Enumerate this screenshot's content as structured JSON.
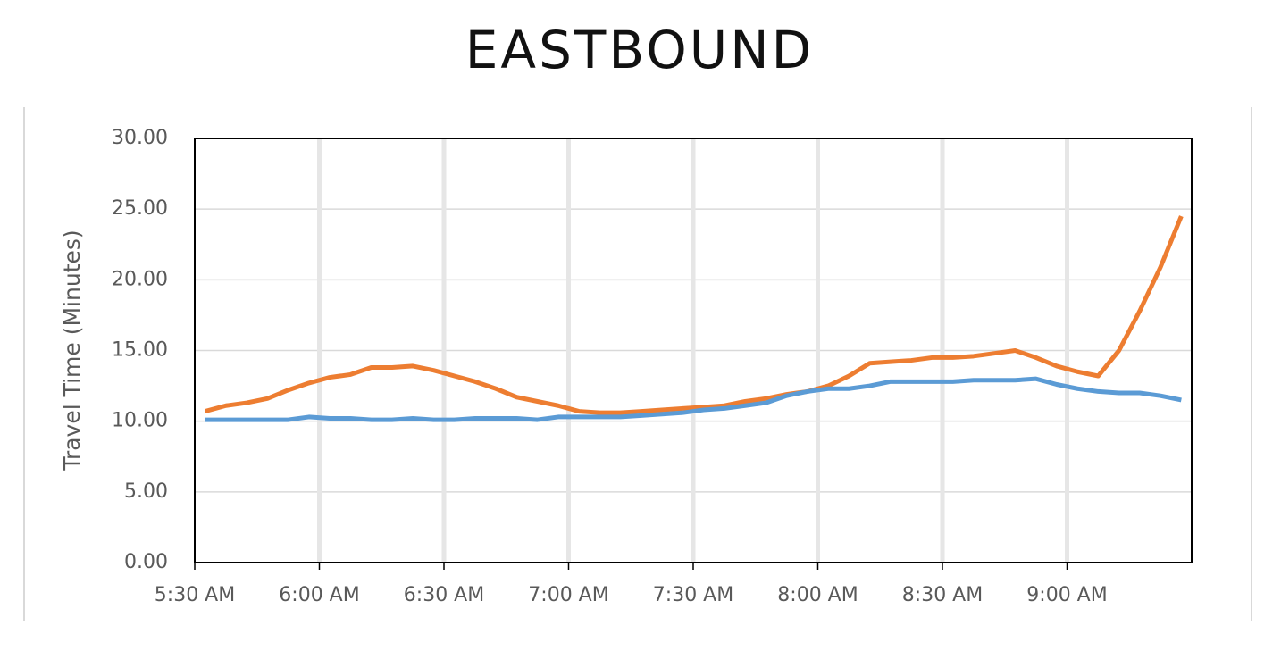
{
  "chart_data": {
    "type": "line",
    "title": "EASTBOUND",
    "y_label": "Travel Time (Minutes)",
    "categories": [
      "5:30 AM",
      null,
      null,
      null,
      null,
      null,
      "6:00 AM",
      null,
      null,
      null,
      null,
      null,
      "6:30 AM",
      null,
      null,
      null,
      null,
      null,
      "7:00 AM",
      null,
      null,
      null,
      null,
      null,
      "7:30 AM",
      null,
      null,
      null,
      null,
      null,
      "8:00 AM",
      null,
      null,
      null,
      null,
      null,
      "8:30 AM",
      null,
      null,
      null,
      null,
      null,
      "9:00 AM",
      null,
      null,
      null,
      null,
      null
    ],
    "series": [
      {
        "color": "#ed7d31",
        "values": [
          10.7,
          11.1,
          11.3,
          11.6,
          12.2,
          12.7,
          13.1,
          13.3,
          13.8,
          13.8,
          13.9,
          13.6,
          13.2,
          12.8,
          12.3,
          11.7,
          11.4,
          11.1,
          10.7,
          10.6,
          10.6,
          10.7,
          10.8,
          10.9,
          11.0,
          11.1,
          11.4,
          11.6,
          11.9,
          12.1,
          12.5,
          13.2,
          14.1,
          14.2,
          14.3,
          14.5,
          14.5,
          14.6,
          14.8,
          15.0,
          14.5,
          13.9,
          13.5,
          13.2,
          15.0,
          17.8,
          20.9,
          24.5
        ]
      },
      {
        "color": "#5b9bd5",
        "values": [
          10.1,
          10.1,
          10.1,
          10.1,
          10.1,
          10.3,
          10.2,
          10.2,
          10.1,
          10.1,
          10.2,
          10.1,
          10.1,
          10.2,
          10.2,
          10.2,
          10.1,
          10.3,
          10.3,
          10.3,
          10.3,
          10.4,
          10.5,
          10.6,
          10.8,
          10.9,
          11.1,
          11.3,
          11.8,
          12.1,
          12.3,
          12.3,
          12.5,
          12.8,
          12.8,
          12.8,
          12.8,
          12.9,
          12.9,
          12.9,
          13.0,
          12.6,
          12.3,
          12.1,
          12.0,
          12.0,
          11.8,
          11.5
        ]
      }
    ],
    "ylim": [
      0,
      30
    ],
    "yticks": [
      {
        "value": 0,
        "label": "0.00"
      },
      {
        "value": 5,
        "label": "5.00"
      },
      {
        "value": 10,
        "label": "10.00"
      },
      {
        "value": 15,
        "label": "15.00"
      },
      {
        "value": 20,
        "label": "20.00"
      },
      {
        "value": 25,
        "label": "25.00"
      },
      {
        "value": 30,
        "label": "30.00"
      }
    ],
    "grid": true
  }
}
